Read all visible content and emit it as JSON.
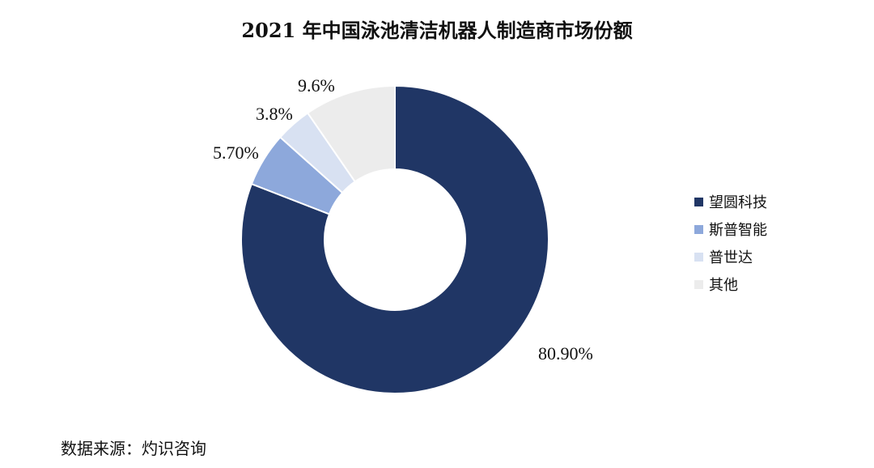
{
  "chart_data": {
    "type": "pie",
    "title": "2021 年中国泳池清洁机器人制造商市场份额",
    "categories": [
      "望圆科技",
      "斯普智能",
      "普世达",
      "其他"
    ],
    "values": [
      80.9,
      5.7,
      3.8,
      9.6
    ],
    "data_labels": [
      "80.90%",
      "5.70%",
      "3.8%",
      "9.6%"
    ],
    "colors": [
      "#203665",
      "#8da8db",
      "#d8e1f2",
      "#ececec"
    ],
    "legend_position": "right"
  },
  "source": "数据来源：灼识咨询"
}
